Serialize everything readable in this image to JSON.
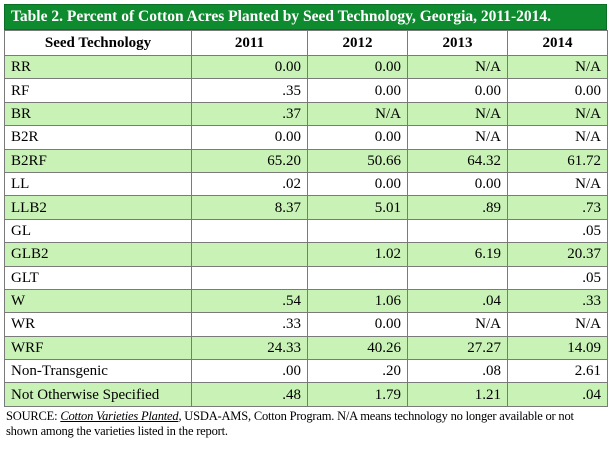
{
  "title": "Table 2.  Percent of Cotton Acres Planted by Seed Technology, Georgia, 2011-2014.",
  "columns": [
    "Seed Technology",
    "2011",
    "2012",
    "2013",
    "2014"
  ],
  "rows": [
    {
      "label": "RR",
      "values": [
        "0.00",
        "0.00",
        "N/A",
        "N/A"
      ]
    },
    {
      "label": "RF",
      "values": [
        ".35",
        "0.00",
        "0.00",
        "0.00"
      ]
    },
    {
      "label": "BR",
      "values": [
        ".37",
        "N/A",
        "N/A",
        "N/A"
      ]
    },
    {
      "label": "B2R",
      "values": [
        "0.00",
        "0.00",
        "N/A",
        "N/A"
      ]
    },
    {
      "label": "B2RF",
      "values": [
        "65.20",
        "50.66",
        "64.32",
        "61.72"
      ]
    },
    {
      "label": "LL",
      "values": [
        ".02",
        "0.00",
        "0.00",
        "N/A"
      ]
    },
    {
      "label": "LLB2",
      "values": [
        "8.37",
        "5.01",
        ".89",
        ".73"
      ]
    },
    {
      "label": "GL",
      "values": [
        "",
        "",
        "",
        ".05"
      ]
    },
    {
      "label": "GLB2",
      "values": [
        "",
        "1.02",
        "6.19",
        "20.37"
      ]
    },
    {
      "label": "GLT",
      "values": [
        "",
        "",
        "",
        ".05"
      ]
    },
    {
      "label": "W",
      "values": [
        ".54",
        "1.06",
        ".04",
        ".33"
      ]
    },
    {
      "label": "WR",
      "values": [
        ".33",
        "0.00",
        "N/A",
        "N/A"
      ]
    },
    {
      "label": "WRF",
      "values": [
        "24.33",
        "40.26",
        "27.27",
        "14.09"
      ]
    },
    {
      "label": "Non-Transgenic",
      "values": [
        ".00",
        ".20",
        ".08",
        "2.61"
      ]
    },
    {
      "label": "Not Otherwise Specified",
      "values": [
        ".48",
        "1.79",
        "1.21",
        ".04"
      ]
    }
  ],
  "source": {
    "prefix": "SOURCE: ",
    "title": "Cotton Varieties Planted",
    "rest": ", USDA-AMS, Cotton Program.  N/A means technology no longer available or not shown among the varieties listed in the report."
  },
  "colors": {
    "title_bg": "#0e8a2f",
    "row_shade": "#c9f2b6"
  }
}
